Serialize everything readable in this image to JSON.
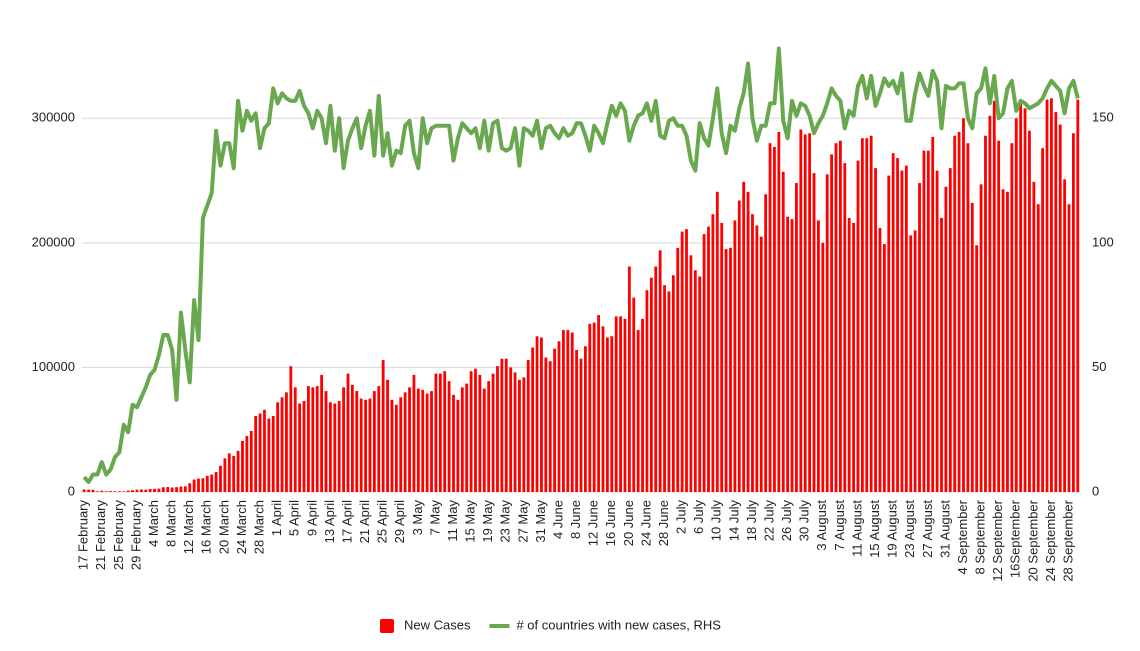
{
  "chart_data": {
    "type": "bar_line",
    "categories": [
      "17 February",
      null,
      null,
      null,
      "21 February",
      null,
      null,
      null,
      "25 February",
      null,
      null,
      null,
      "29 February",
      null,
      null,
      null,
      "4 March",
      null,
      null,
      null,
      "8 March",
      null,
      null,
      null,
      "12 March",
      null,
      null,
      null,
      "16 March",
      null,
      null,
      null,
      "20 March",
      null,
      null,
      null,
      "24 March",
      null,
      null,
      null,
      "28 March",
      null,
      null,
      null,
      "1 April",
      null,
      null,
      null,
      "5 April",
      null,
      null,
      null,
      "9 April",
      null,
      null,
      null,
      "13 April",
      null,
      null,
      null,
      "17 April",
      null,
      null,
      null,
      "21 April",
      null,
      null,
      null,
      "25 April",
      null,
      null,
      null,
      "29 April",
      null,
      null,
      null,
      "3 May",
      null,
      null,
      null,
      "7 May",
      null,
      null,
      null,
      "11 May",
      null,
      null,
      null,
      "15 May",
      null,
      null,
      null,
      "19 May",
      null,
      null,
      null,
      "23 May",
      null,
      null,
      null,
      "27 May",
      null,
      null,
      null,
      "31 May",
      null,
      null,
      null,
      "4 June",
      null,
      null,
      null,
      "8 June",
      null,
      null,
      null,
      "12 June",
      null,
      null,
      null,
      "16 June",
      null,
      null,
      null,
      "20 June",
      null,
      null,
      null,
      "24 June",
      null,
      null,
      null,
      "28 June",
      null,
      null,
      null,
      "2 July",
      null,
      null,
      null,
      "6 July",
      null,
      null,
      null,
      "10 July",
      null,
      null,
      null,
      "14 July",
      null,
      null,
      null,
      "18 July",
      null,
      null,
      null,
      "22 July",
      null,
      null,
      null,
      "26 July",
      null,
      null,
      null,
      "30 July",
      null,
      null,
      null,
      "3 August",
      null,
      null,
      null,
      "7 August",
      null,
      null,
      null,
      "11 August",
      null,
      null,
      null,
      "15 August",
      null,
      null,
      null,
      "19 August",
      null,
      null,
      null,
      "23 August",
      null,
      null,
      null,
      "27 August",
      null,
      null,
      null,
      "31 August",
      null,
      null,
      null,
      "4 September",
      null,
      null,
      null,
      "8 September",
      null,
      null,
      null,
      "12 September",
      null,
      null,
      null,
      "16September",
      null,
      null,
      null,
      "20 September",
      null,
      null,
      null,
      "24 September",
      null,
      null,
      null,
      "28 September",
      null,
      null
    ],
    "series": [
      {
        "name": "New Cases",
        "color": "#ff0000",
        "type": "bar",
        "axis": "y",
        "values": [
          2000,
          1900,
          1800,
          600,
          1000,
          600,
          700,
          600,
          600,
          500,
          1100,
          1500,
          1900,
          2000,
          1800,
          2400,
          2500,
          2700,
          3800,
          4000,
          3600,
          3900,
          4400,
          4500,
          7000,
          10000,
          10800,
          11000,
          13000,
          14000,
          16000,
          21000,
          27000,
          31000,
          29000,
          33000,
          41000,
          45000,
          49000,
          61000,
          63000,
          66000,
          59000,
          61000,
          72000,
          76000,
          80000,
          101000,
          84000,
          71000,
          73000,
          85000,
          84000,
          85000,
          94000,
          81000,
          72000,
          71000,
          73000,
          84000,
          95000,
          86000,
          81000,
          75000,
          74000,
          75000,
          81000,
          85000,
          106000,
          90000,
          74000,
          70000,
          76000,
          80000,
          84000,
          94000,
          83000,
          82000,
          79000,
          81000,
          95000,
          95000,
          97000,
          89000,
          78000,
          74000,
          84000,
          87000,
          97000,
          99000,
          94000,
          83000,
          89000,
          95000,
          101000,
          107000,
          107000,
          100000,
          96000,
          90000,
          92000,
          106000,
          116000,
          125000,
          124000,
          108000,
          105000,
          115000,
          121000,
          130000,
          130000,
          128000,
          114000,
          107000,
          117000,
          135000,
          136000,
          142000,
          133000,
          124000,
          125000,
          141000,
          141000,
          139000,
          181000,
          156000,
          130000,
          139000,
          162000,
          172000,
          181000,
          194000,
          166000,
          161000,
          174000,
          196000,
          209000,
          211000,
          190000,
          178000,
          173000,
          207000,
          213000,
          223000,
          241000,
          216000,
          195000,
          196000,
          218000,
          234000,
          249000,
          241000,
          223000,
          214000,
          205000,
          239000,
          280000,
          277000,
          289000,
          257000,
          221000,
          219000,
          248000,
          291000,
          287000,
          288000,
          256000,
          218000,
          200000,
          255000,
          271000,
          280000,
          282000,
          264000,
          220000,
          216000,
          266000,
          284000,
          284000,
          286000,
          260000,
          212000,
          199000,
          254000,
          272000,
          268000,
          258000,
          262000,
          206000,
          210000,
          248000,
          274000,
          274000,
          285000,
          258000,
          220000,
          245000,
          260000,
          286000,
          289000,
          300000,
          280000,
          232000,
          198000,
          247000,
          286000,
          302000,
          314000,
          282000,
          243000,
          241000,
          280000,
          300000,
          314000,
          308000,
          290000,
          249000,
          231000,
          276000,
          315000,
          316000,
          305000,
          295000,
          251000,
          231000,
          288000,
          315000
        ]
      },
      {
        "name": "# of countries with new cases, RHS",
        "color": "#6aa84f",
        "type": "line",
        "axis": "y2",
        "values": [
          6,
          4,
          7,
          7,
          12,
          7,
          9,
          14,
          16,
          27,
          24,
          35,
          34,
          38,
          42,
          47,
          49,
          55,
          63,
          63,
          57,
          37,
          72,
          57,
          44,
          77,
          61,
          110,
          115,
          120,
          145,
          131,
          140,
          140,
          130,
          157,
          145,
          153,
          149,
          152,
          138,
          146,
          148,
          162,
          156,
          160,
          158,
          157,
          157,
          161,
          155,
          152,
          146,
          153,
          150,
          140,
          155,
          137,
          150,
          130,
          141,
          146,
          150,
          138,
          147,
          153,
          135,
          159,
          135,
          144,
          131,
          137,
          136,
          147,
          149,
          136,
          130,
          150,
          140,
          146,
          147,
          147,
          147,
          147,
          133,
          142,
          148,
          146,
          144,
          146,
          138,
          149,
          137,
          148,
          149,
          138,
          137,
          138,
          146,
          131,
          146,
          145,
          143,
          149,
          138,
          146,
          147,
          144,
          142,
          146,
          143,
          144,
          148,
          148,
          143,
          137,
          147,
          144,
          140,
          148,
          155,
          151,
          156,
          153,
          141,
          147,
          151,
          152,
          156,
          149,
          157,
          143,
          142,
          149,
          150,
          147,
          147,
          143,
          133,
          129,
          148,
          142,
          139,
          150,
          162,
          144,
          136,
          147,
          145,
          154,
          160,
          172,
          150,
          141,
          147,
          147,
          156,
          156,
          178,
          149,
          142,
          157,
          151,
          156,
          155,
          151,
          144,
          148,
          151,
          156,
          162,
          159,
          157,
          146,
          153,
          151,
          163,
          167,
          158,
          167,
          155,
          160,
          166,
          163,
          165,
          160,
          168,
          149,
          149,
          160,
          168,
          163,
          159,
          169,
          165,
          146,
          163,
          162,
          162,
          164,
          164,
          150,
          146,
          160,
          162,
          170,
          156,
          167,
          150,
          152,
          162,
          165,
          153,
          157,
          156,
          154,
          155,
          156,
          158,
          162,
          165,
          163,
          161,
          152,
          162,
          165,
          158
        ]
      }
    ],
    "ylim": [
      0,
      350000
    ],
    "yticks": [
      0,
      100000,
      200000,
      300000
    ],
    "y2lim": [
      0,
      175
    ],
    "y2ticks": [
      0,
      50,
      100,
      150
    ],
    "grid": true,
    "legend": "bottom"
  }
}
